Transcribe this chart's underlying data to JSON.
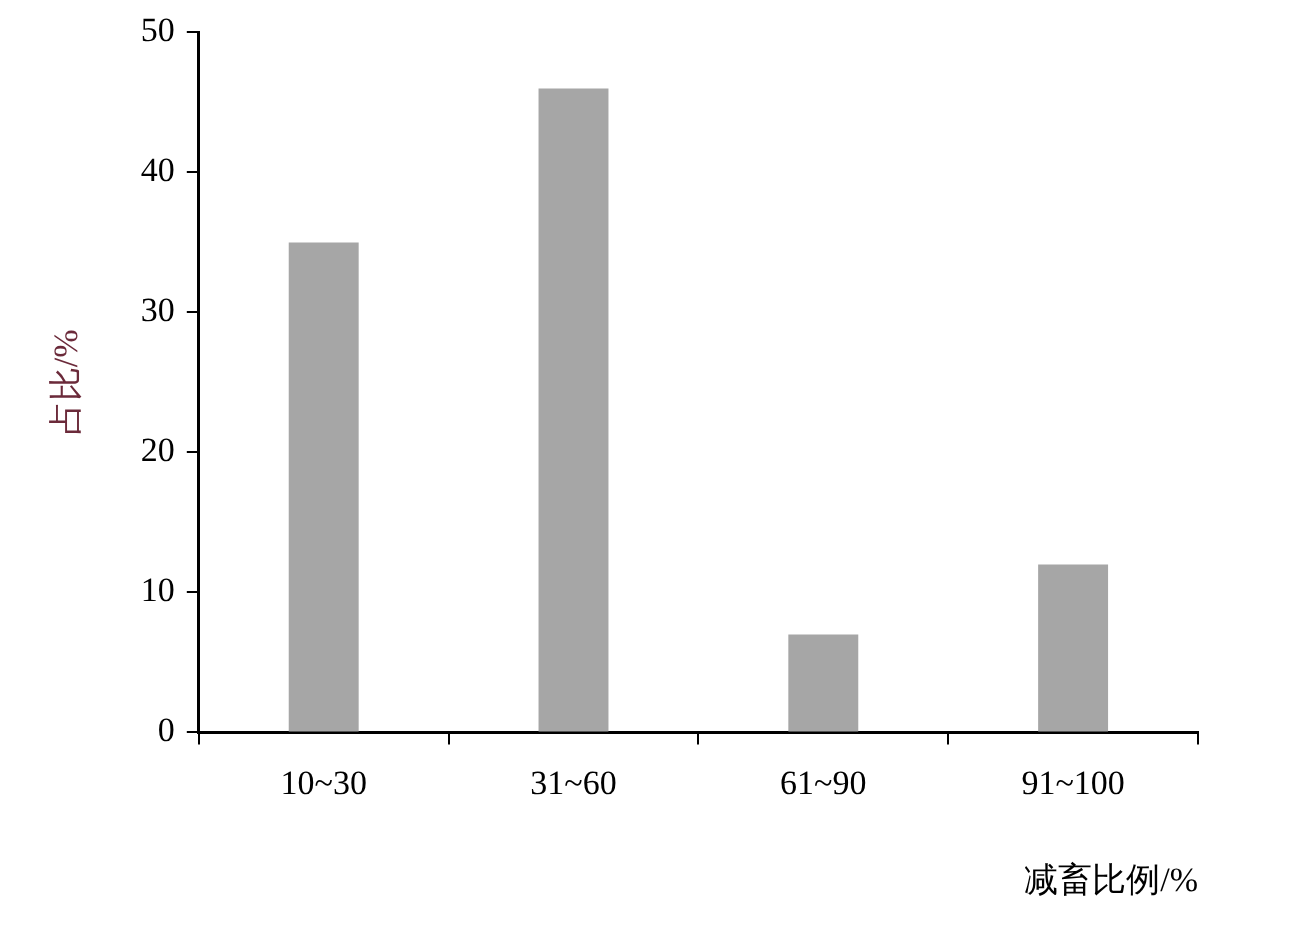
{
  "chart_data": {
    "type": "bar",
    "xlabel": "减畜比例/%",
    "ylabel": "占比/%",
    "categories": [
      "10~30",
      "31~60",
      "61~90",
      "91~100"
    ],
    "values": [
      35,
      46,
      7,
      12
    ],
    "color": "#a6a6a6",
    "ylim": [
      0,
      50
    ],
    "yticks": [
      0,
      10,
      20,
      30,
      40,
      50
    ],
    "grid": false,
    "legend": false
  }
}
